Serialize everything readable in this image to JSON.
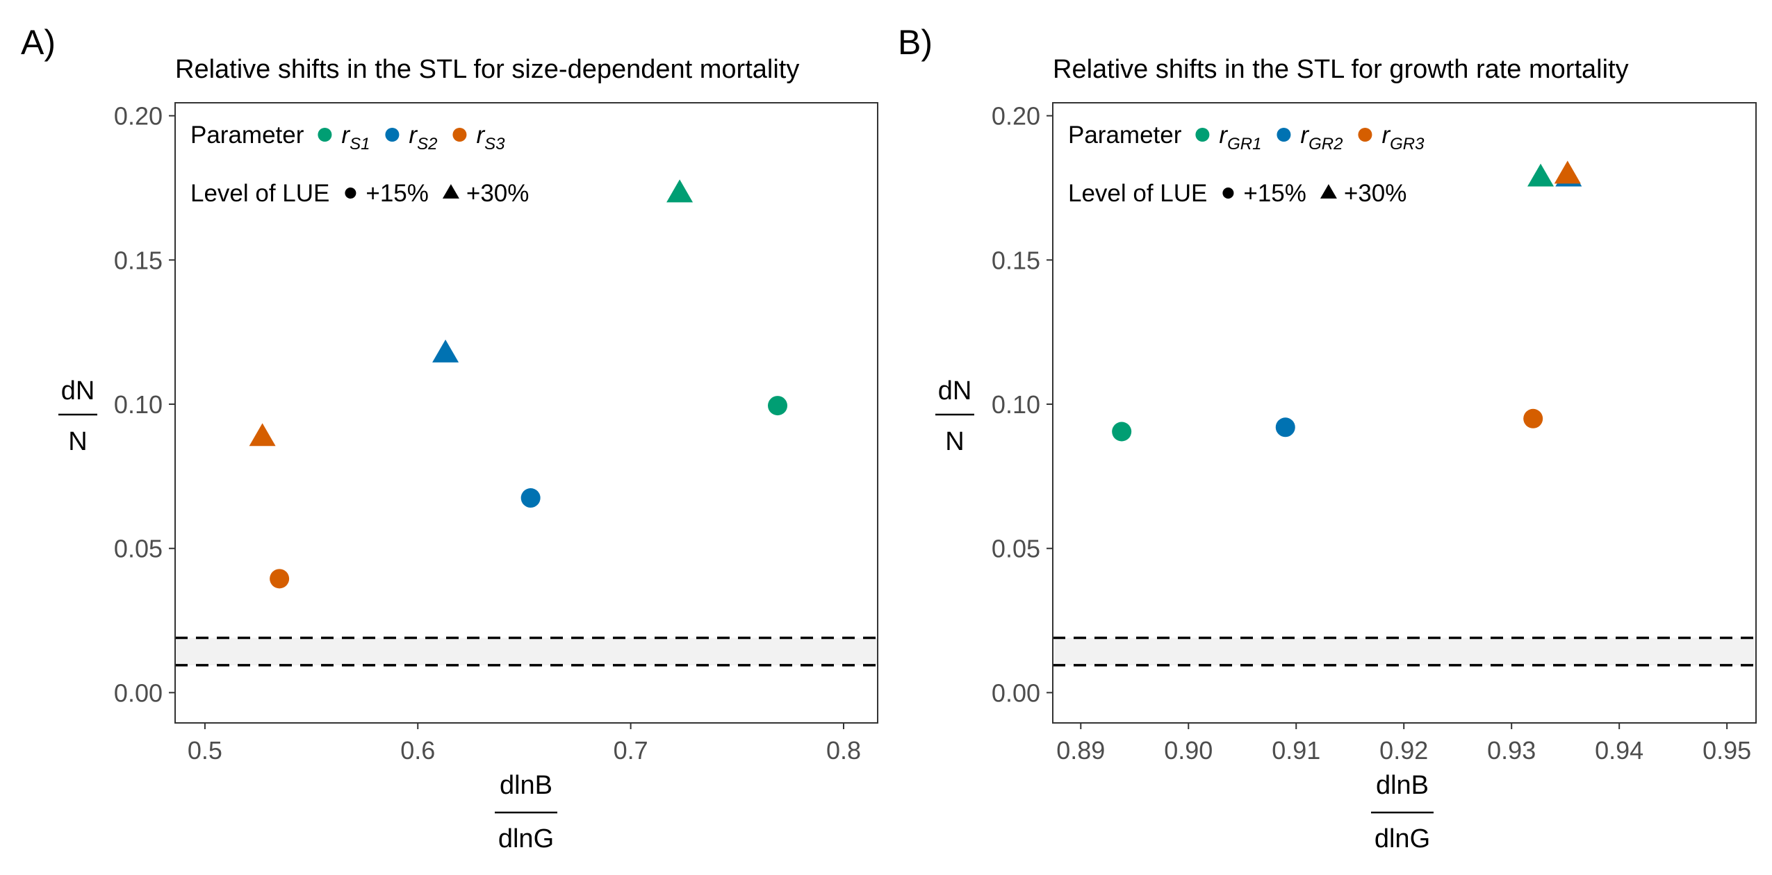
{
  "chart_data": [
    {
      "type": "scatter",
      "panel_label": "A)",
      "title": "Relative shifts in the STL for size-dependent mortality",
      "xlabel": {
        "numerator": "dlnB",
        "denominator": "dlnG"
      },
      "ylabel": {
        "numerator": "dN",
        "denominator": "N"
      },
      "xlim": [
        0.486,
        0.816
      ],
      "ylim": [
        -0.0105,
        0.2045
      ],
      "xticks": [
        0.5,
        0.6,
        0.7,
        0.8
      ],
      "xtick_labels": [
        "0.5",
        "0.6",
        "0.7",
        "0.8"
      ],
      "yticks": [
        0.0,
        0.05,
        0.1,
        0.15,
        0.2
      ],
      "ytick_labels": [
        "0.00",
        "0.05",
        "0.10",
        "0.15",
        "0.20"
      ],
      "reference_band": {
        "lower": 0.0095,
        "upper": 0.019,
        "fill": "#f2f2f2"
      },
      "grid": false,
      "legend": {
        "placement": "top-left",
        "parameter_title": "Parameter",
        "parameter_items": [
          {
            "base": "r",
            "sub": "S1",
            "color": "#009E73"
          },
          {
            "base": "r",
            "sub": "S2",
            "color": "#0072B2"
          },
          {
            "base": "r",
            "sub": "S3",
            "color": "#D55E00"
          }
        ],
        "level_title": "Level of LUE",
        "level_items": [
          {
            "label": "+15%",
            "shape": "circle"
          },
          {
            "label": "+30%",
            "shape": "triangle"
          }
        ]
      },
      "points": [
        {
          "x": 0.769,
          "y": 0.0995,
          "color": "#009E73",
          "shape": "circle"
        },
        {
          "x": 0.723,
          "y": 0.173,
          "color": "#009E73",
          "shape": "triangle"
        },
        {
          "x": 0.653,
          "y": 0.0675,
          "color": "#0072B2",
          "shape": "circle"
        },
        {
          "x": 0.613,
          "y": 0.1175,
          "color": "#0072B2",
          "shape": "triangle"
        },
        {
          "x": 0.535,
          "y": 0.0395,
          "color": "#D55E00",
          "shape": "circle"
        },
        {
          "x": 0.527,
          "y": 0.0885,
          "color": "#D55E00",
          "shape": "triangle"
        }
      ]
    },
    {
      "type": "scatter",
      "panel_label": "B)",
      "title": "Relative shifts in the STL for growth rate mortality",
      "xlabel": {
        "numerator": "dlnB",
        "denominator": "dlnG"
      },
      "ylabel": {
        "numerator": "dN",
        "denominator": "N"
      },
      "xlim": [
        0.8874,
        0.9527
      ],
      "ylim": [
        -0.0105,
        0.2045
      ],
      "xticks": [
        0.89,
        0.9,
        0.91,
        0.92,
        0.93,
        0.94,
        0.95
      ],
      "xtick_labels": [
        "0.89",
        "0.90",
        "0.91",
        "0.92",
        "0.93",
        "0.94",
        "0.95"
      ],
      "yticks": [
        0.0,
        0.05,
        0.1,
        0.15,
        0.2
      ],
      "ytick_labels": [
        "0.00",
        "0.05",
        "0.10",
        "0.15",
        "0.20"
      ],
      "reference_band": {
        "lower": 0.0095,
        "upper": 0.019,
        "fill": "#f2f2f2"
      },
      "grid": false,
      "legend": {
        "placement": "top-left",
        "parameter_title": "Parameter",
        "parameter_items": [
          {
            "base": "r",
            "sub": "GR1",
            "color": "#009E73"
          },
          {
            "base": "r",
            "sub": "GR2",
            "color": "#0072B2"
          },
          {
            "base": "r",
            "sub": "GR3",
            "color": "#D55E00"
          }
        ],
        "level_title": "Level of LUE",
        "level_items": [
          {
            "label": "+15%",
            "shape": "circle"
          },
          {
            "label": "+30%",
            "shape": "triangle"
          }
        ]
      },
      "points": [
        {
          "x": 0.8938,
          "y": 0.0905,
          "color": "#009E73",
          "shape": "circle"
        },
        {
          "x": 0.9327,
          "y": 0.1785,
          "color": "#009E73",
          "shape": "triangle"
        },
        {
          "x": 0.909,
          "y": 0.092,
          "color": "#0072B2",
          "shape": "circle"
        },
        {
          "x": 0.9353,
          "y": 0.1785,
          "color": "#0072B2",
          "shape": "triangle"
        },
        {
          "x": 0.932,
          "y": 0.095,
          "color": "#D55E00",
          "shape": "circle"
        },
        {
          "x": 0.9352,
          "y": 0.1795,
          "color": "#D55E00",
          "shape": "triangle"
        }
      ]
    }
  ]
}
